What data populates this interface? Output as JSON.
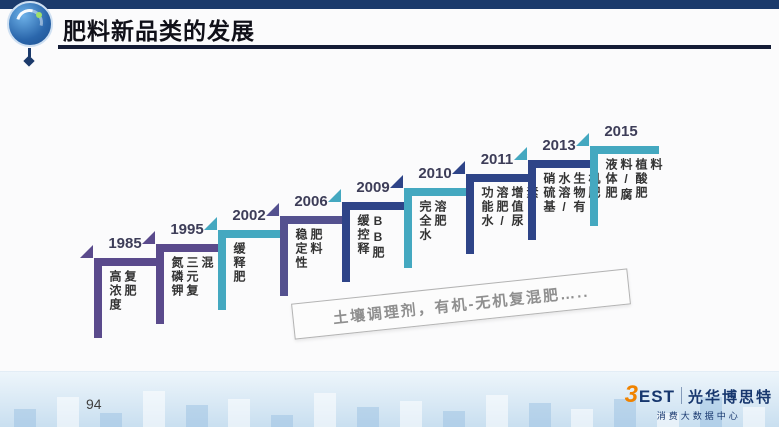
{
  "header": {
    "title": "肥料新品类的发展"
  },
  "timeline": {
    "steps": [
      {
        "year": "1985",
        "label": "高浓度复肥",
        "color": "#5a4a8c",
        "triangle": "#5a4a8c"
      },
      {
        "year": "1995",
        "label": "氮磷钾三元复混",
        "color": "#5a4a8c",
        "triangle": "#5a4a8c"
      },
      {
        "year": "2002",
        "label": "缓释肥",
        "color": "#44a8c0",
        "triangle": "#44a8c0"
      },
      {
        "year": "2006",
        "label": "稳定性肥料",
        "color": "#54518f",
        "triangle": "#54518f"
      },
      {
        "year": "2009",
        "label": "缓控释BB肥",
        "color": "#2e4488",
        "triangle": "#44a8c0"
      },
      {
        "year": "2010",
        "label": "完全水溶肥",
        "color": "#44a8c0",
        "triangle": "#2e4488"
      },
      {
        "year": "2011",
        "label": "功能水溶肥/增值尿素",
        "color": "#2e4488",
        "triangle": "#2e4488"
      },
      {
        "year": "2013",
        "label": "硝硫基水溶/生物有机肥",
        "color": "#2e4488",
        "triangle": "#44a8c0"
      },
      {
        "year": "2015",
        "label": "液体肥料/腐植酸肥料",
        "color": "#44a8c0",
        "triangle": "#44a8c0"
      }
    ],
    "banner": "土壤调理剂，有机-无机复混肥….."
  },
  "footer": {
    "page_number": "94",
    "logo_mark": "3",
    "logo_name": "EST",
    "brand_name": "光华博思特",
    "brand_subtitle": "消费大数据中心"
  }
}
